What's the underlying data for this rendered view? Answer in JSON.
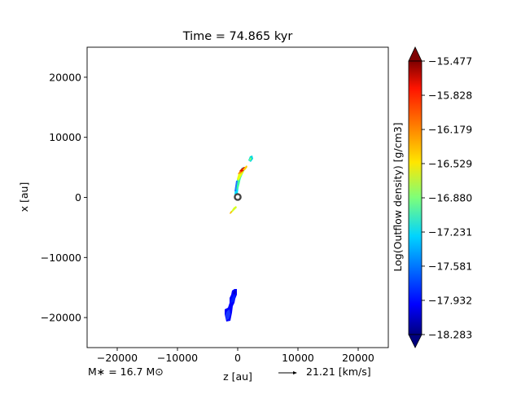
{
  "chart_data": {
    "type": "contour",
    "title": "Time = 74.865 kyr",
    "xlabel": "z [au]",
    "ylabel": "x [au]",
    "xlim": [
      -25000,
      25000
    ],
    "ylim": [
      -25000,
      25000
    ],
    "xticks": [
      -20000,
      -10000,
      0,
      10000,
      20000
    ],
    "xtick_labels": [
      "−20000",
      "−10000",
      "0",
      "10000",
      "20000"
    ],
    "yticks": [
      20000,
      10000,
      0,
      -10000,
      -20000
    ],
    "ytick_labels": [
      "20000",
      "10000",
      "0",
      "−10000",
      "−20000"
    ],
    "colorbar": {
      "label": "Log(Outflow density) [g/cm3]",
      "min": -18.283,
      "max": -15.477,
      "tick_values": [
        -15.477,
        -15.828,
        -16.179,
        -16.529,
        -16.88,
        -17.231,
        -17.581,
        -17.932,
        -18.283
      ],
      "tick_labels": [
        "−15.477",
        "−15.828",
        "−16.179",
        "−16.529",
        "−16.880",
        "−17.231",
        "−17.581",
        "−17.932",
        "−18.283"
      ],
      "colormap": "jet",
      "extend": "both"
    },
    "regions": [
      {
        "name": "upper-jet",
        "z": [
          0,
          2000
        ],
        "x": [
          -2500,
          6500
        ],
        "level_range": [
          -17.6,
          -15.6
        ]
      },
      {
        "name": "lower-knot",
        "z": [
          -2200,
          -200
        ],
        "x": [
          -20800,
          -15000
        ],
        "level_range": [
          -18.2,
          -17.9
        ]
      }
    ],
    "star_marker": {
      "z": 0,
      "x": 0
    },
    "star_mass_label": "M∗ = 16.7 M⊙",
    "velocity_scale_label": "21.21 [km/s]"
  }
}
